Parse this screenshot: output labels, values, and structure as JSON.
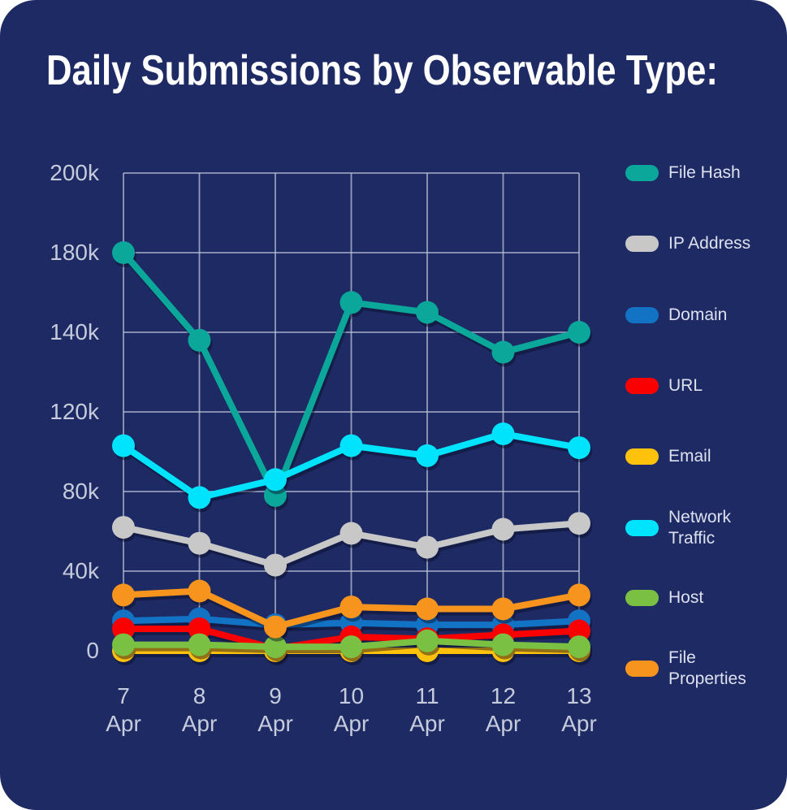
{
  "title": "Daily Submissions by Observable Type:",
  "chart_data": {
    "type": "line",
    "title": "Daily Submissions by Observable Type:",
    "unit": "thousands (k)",
    "categories": [
      "7 Apr",
      "8 Apr",
      "9 Apr",
      "10 Apr",
      "11 Apr",
      "12 Apr",
      "13 Apr"
    ],
    "y_axis": {
      "ticks": [
        {
          "label": "200k",
          "value": 200
        },
        {
          "label": "180k",
          "value": 180
        },
        {
          "label": "140k",
          "value": 140
        },
        {
          "label": "120k",
          "value": 120
        },
        {
          "label": "80k",
          "value": 80
        },
        {
          "label": "40k",
          "value": 40
        },
        {
          "label": "0",
          "value": 0
        }
      ],
      "evenly_spaced_ticks": true
    },
    "grid": true,
    "legend_position": "right",
    "background_color": "#1E2A64",
    "gridline_color": "#BCC3D6",
    "tick_label_color": "#C6CBDC",
    "series": [
      {
        "name": "File Hash",
        "color": "#0BA79A",
        "values": [
          180,
          138,
          78,
          155,
          150,
          135,
          140
        ]
      },
      {
        "name": "IP Address",
        "color": "#C8C8C8",
        "values": [
          62,
          54,
          43,
          59,
          52,
          61,
          64
        ]
      },
      {
        "name": "Domain",
        "color": "#1273C5",
        "values": [
          15,
          16,
          13,
          14,
          13,
          13,
          15
        ]
      },
      {
        "name": "URL",
        "color": "#FA0000",
        "values": [
          11,
          11,
          1,
          7,
          6,
          8,
          10
        ]
      },
      {
        "name": "Email",
        "color": "#FFC20C",
        "values": [
          0,
          0,
          0,
          0,
          0,
          0,
          0
        ]
      },
      {
        "name": "Network Traffic",
        "color": "#00E3FD",
        "values": [
          103,
          77,
          86,
          103,
          98,
          109,
          102
        ]
      },
      {
        "name": "Host",
        "color": "#7AC143",
        "values": [
          3,
          3,
          2,
          2,
          5,
          3,
          2
        ]
      },
      {
        "name": "File Properties",
        "color": "#F7941D",
        "values": [
          28,
          30,
          12,
          22,
          21,
          21,
          28
        ]
      }
    ]
  }
}
